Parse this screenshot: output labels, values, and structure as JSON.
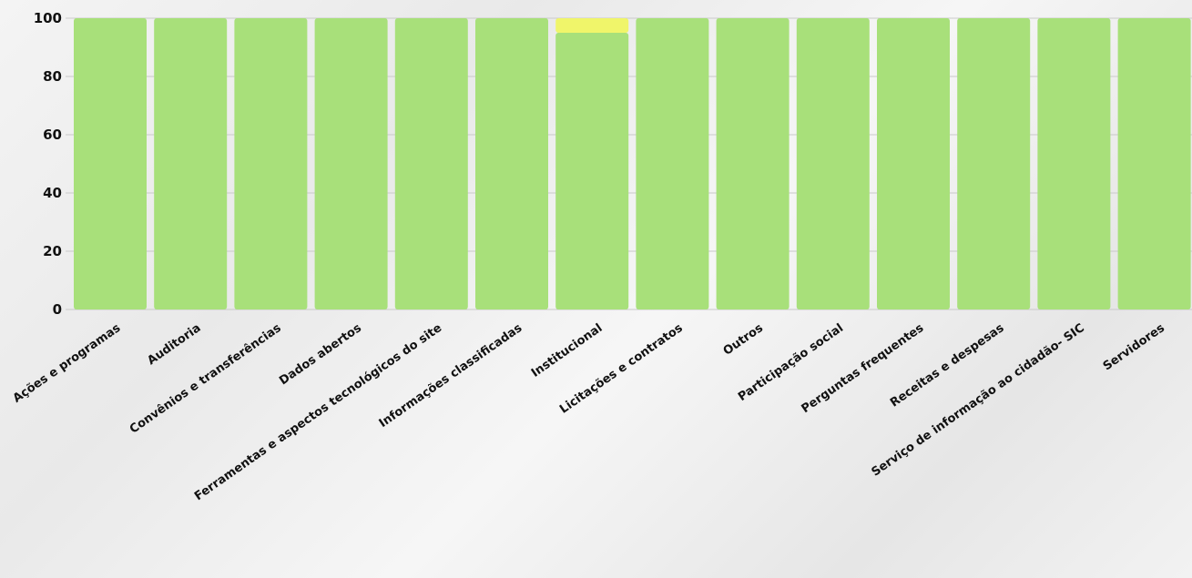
{
  "chart_data": {
    "type": "bar",
    "stacked": true,
    "categories": [
      "Ações e programas",
      "Auditoria",
      "Convênios e transferências",
      "Dados abertos",
      "Ferramentas e aspectos tecnológicos do site",
      "Informações classificadas",
      "Institucional",
      "Licitações e contratos",
      "Outros",
      "Participação social",
      "Perguntas frequentes",
      "Receitas e despesas",
      "Serviço de informação ao cidadão- SIC",
      "Servidores"
    ],
    "series": [
      {
        "color": "#a8e07a",
        "values": [
          100,
          100,
          100,
          100,
          100,
          100,
          95,
          100,
          100,
          100,
          100,
          100,
          100,
          100
        ]
      },
      {
        "color": "#f0f56a",
        "values": [
          0,
          0,
          0,
          0,
          0,
          0,
          5,
          0,
          0,
          0,
          0,
          0,
          0,
          0
        ]
      }
    ],
    "ylim": [
      0,
      100
    ],
    "yticks": [
      0,
      20,
      40,
      60,
      80,
      100
    ],
    "grid": true,
    "legend": "none"
  }
}
